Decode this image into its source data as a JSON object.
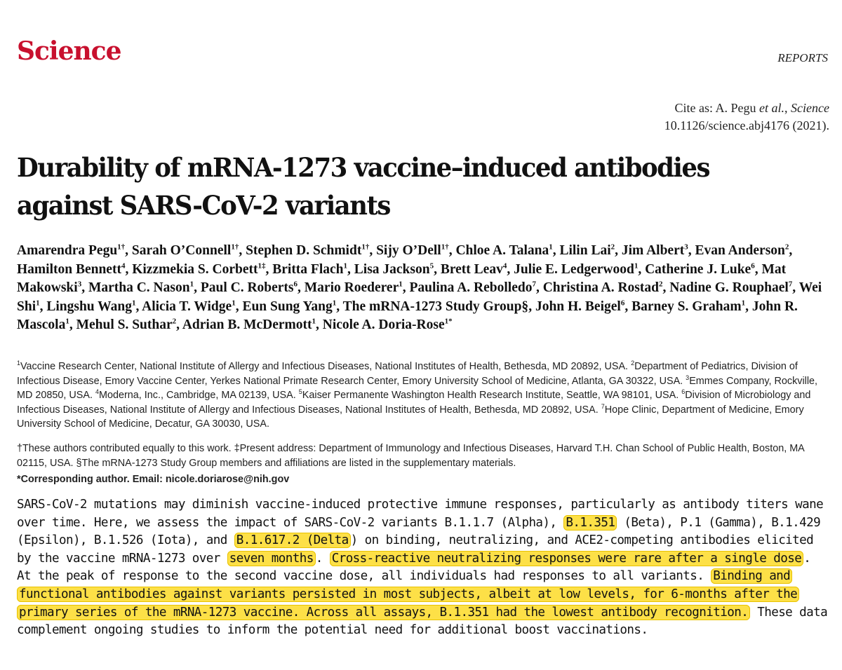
{
  "header": {
    "journal": "Science",
    "section": "REPORTS"
  },
  "citation": {
    "prefix": "Cite as: A. Pegu ",
    "etal": "et al.",
    "sep": ", ",
    "journal": "Science",
    "doi_line": "10.1126/science.abj4176 (2021)."
  },
  "title": "Durability of mRNA-1273 vaccine–induced antibodies against SARS-CoV-2 variants",
  "authors": [
    {
      "name": "Amarendra Pegu",
      "sup": "1†"
    },
    {
      "name": "Sarah O’Connell",
      "sup": "1†"
    },
    {
      "name": "Stephen D. Schmidt",
      "sup": "1†"
    },
    {
      "name": "Sijy O’Dell",
      "sup": "1†"
    },
    {
      "name": "Chloe A. Talana",
      "sup": "1"
    },
    {
      "name": "Lilin Lai",
      "sup": "2"
    },
    {
      "name": "Jim Albert",
      "sup": "3"
    },
    {
      "name": "Evan Anderson",
      "sup": "2"
    },
    {
      "name": "Hamilton Bennett",
      "sup": "4"
    },
    {
      "name": "Kizzmekia S. Corbett",
      "sup": "1‡"
    },
    {
      "name": "Britta Flach",
      "sup": "1"
    },
    {
      "name": "Lisa Jackson",
      "sup": "5"
    },
    {
      "name": "Brett Leav",
      "sup": "4"
    },
    {
      "name": "Julie E. Ledgerwood",
      "sup": "1"
    },
    {
      "name": "Catherine J. Luke",
      "sup": "6"
    },
    {
      "name": "Mat Makowski",
      "sup": "3"
    },
    {
      "name": "Martha C. Nason",
      "sup": "1"
    },
    {
      "name": "Paul C. Roberts",
      "sup": "6"
    },
    {
      "name": "Mario Roederer",
      "sup": "1"
    },
    {
      "name": "Paulina A. Rebolledo",
      "sup": "7"
    },
    {
      "name": "Christina A. Rostad",
      "sup": "2"
    },
    {
      "name": "Nadine G. Rouphael",
      "sup": "7"
    },
    {
      "name": "Wei Shi",
      "sup": "1"
    },
    {
      "name": "Lingshu Wang",
      "sup": "1"
    },
    {
      "name": "Alicia T. Widge",
      "sup": "1"
    },
    {
      "name": "Eun Sung Yang",
      "sup": "1"
    },
    {
      "name": "The mRNA-1273 Study Group§",
      "sup": ""
    },
    {
      "name": "John H. Beigel",
      "sup": "6"
    },
    {
      "name": "Barney S. Graham",
      "sup": "1"
    },
    {
      "name": "John R. Mascola",
      "sup": "1"
    },
    {
      "name": "Mehul S. Suthar",
      "sup": "2"
    },
    {
      "name": "Adrian B. McDermott",
      "sup": "1"
    },
    {
      "name": "Nicole A. Doria-Rose",
      "sup": "1*"
    }
  ],
  "affiliations": [
    {
      "sup": "1",
      "text": "Vaccine Research Center, National Institute of Allergy and Infectious Diseases, National Institutes of Health, Bethesda, MD 20892, USA."
    },
    {
      "sup": "2",
      "text": "Department of Pediatrics, Division of Infectious Disease, Emory Vaccine Center, Yerkes National Primate Research Center, Emory University School of Medicine, Atlanta, GA 30322, USA."
    },
    {
      "sup": "3",
      "text": "Emmes Company, Rockville, MD 20850, USA."
    },
    {
      "sup": "4",
      "text": "Moderna, Inc., Cambridge, MA 02139, USA."
    },
    {
      "sup": "5",
      "text": "Kaiser Permanente Washington Health Research Institute, Seattle, WA 98101, USA."
    },
    {
      "sup": "6",
      "text": "Division of Microbiology and Infectious Diseases, National Institute of Allergy and Infectious Diseases, National Institutes of Health, Bethesda, MD 20892, USA."
    },
    {
      "sup": "7",
      "text": "Hope Clinic, Department of Medicine, Emory University School of Medicine, Decatur, GA 30030, USA."
    }
  ],
  "footnotes": "†These authors contributed equally to this work. ‡Present address: Department of Immunology and Infectious Diseases, Harvard T.H. Chan School of Public Health, Boston, MA 02115, USA. §The mRNA-1273 Study Group members and affiliations are listed in the supplementary materials.",
  "corresponding": "*Corresponding author. Email: nicole.doriarose@nih.gov",
  "highlight_color": "#fde047",
  "abstract": [
    {
      "text": "SARS-CoV-2 mutations may diminish vaccine-induced protective immune responses, particularly as antibody titers wane over time. Here, we assess the impact of SARS-CoV-2 variants B.1.1.7 (Alpha), ",
      "hl": false
    },
    {
      "text": "B.1.351",
      "hl": true
    },
    {
      "text": " (Beta), P.1 (Gamma), B.1.429 (Epsilon), B.1.526 (Iota), and ",
      "hl": false
    },
    {
      "text": "B.1.617.2 (Delta",
      "hl": true
    },
    {
      "text": ") on binding, neutralizing, and ACE2-competing antibodies elicited by the vaccine mRNA-1273 over ",
      "hl": false
    },
    {
      "text": "seven months",
      "hl": true
    },
    {
      "text": ". ",
      "hl": false
    },
    {
      "text": "Cross-reactive neutralizing responses were rare after a single dose",
      "hl": true
    },
    {
      "text": ". At the peak of response to the second vaccine dose, all individuals had responses to all variants. ",
      "hl": false
    },
    {
      "text": "Binding and functional antibodies against variants persisted in most subjects, albeit at low levels, for 6-months after the primary series of the mRNA-1273 vaccine. Across all assays, B.1.351 had the lowest antibody recognition.",
      "hl": true
    },
    {
      "text": " These data complement ongoing studies to inform the potential need for additional boost vaccinations.",
      "hl": false
    }
  ]
}
